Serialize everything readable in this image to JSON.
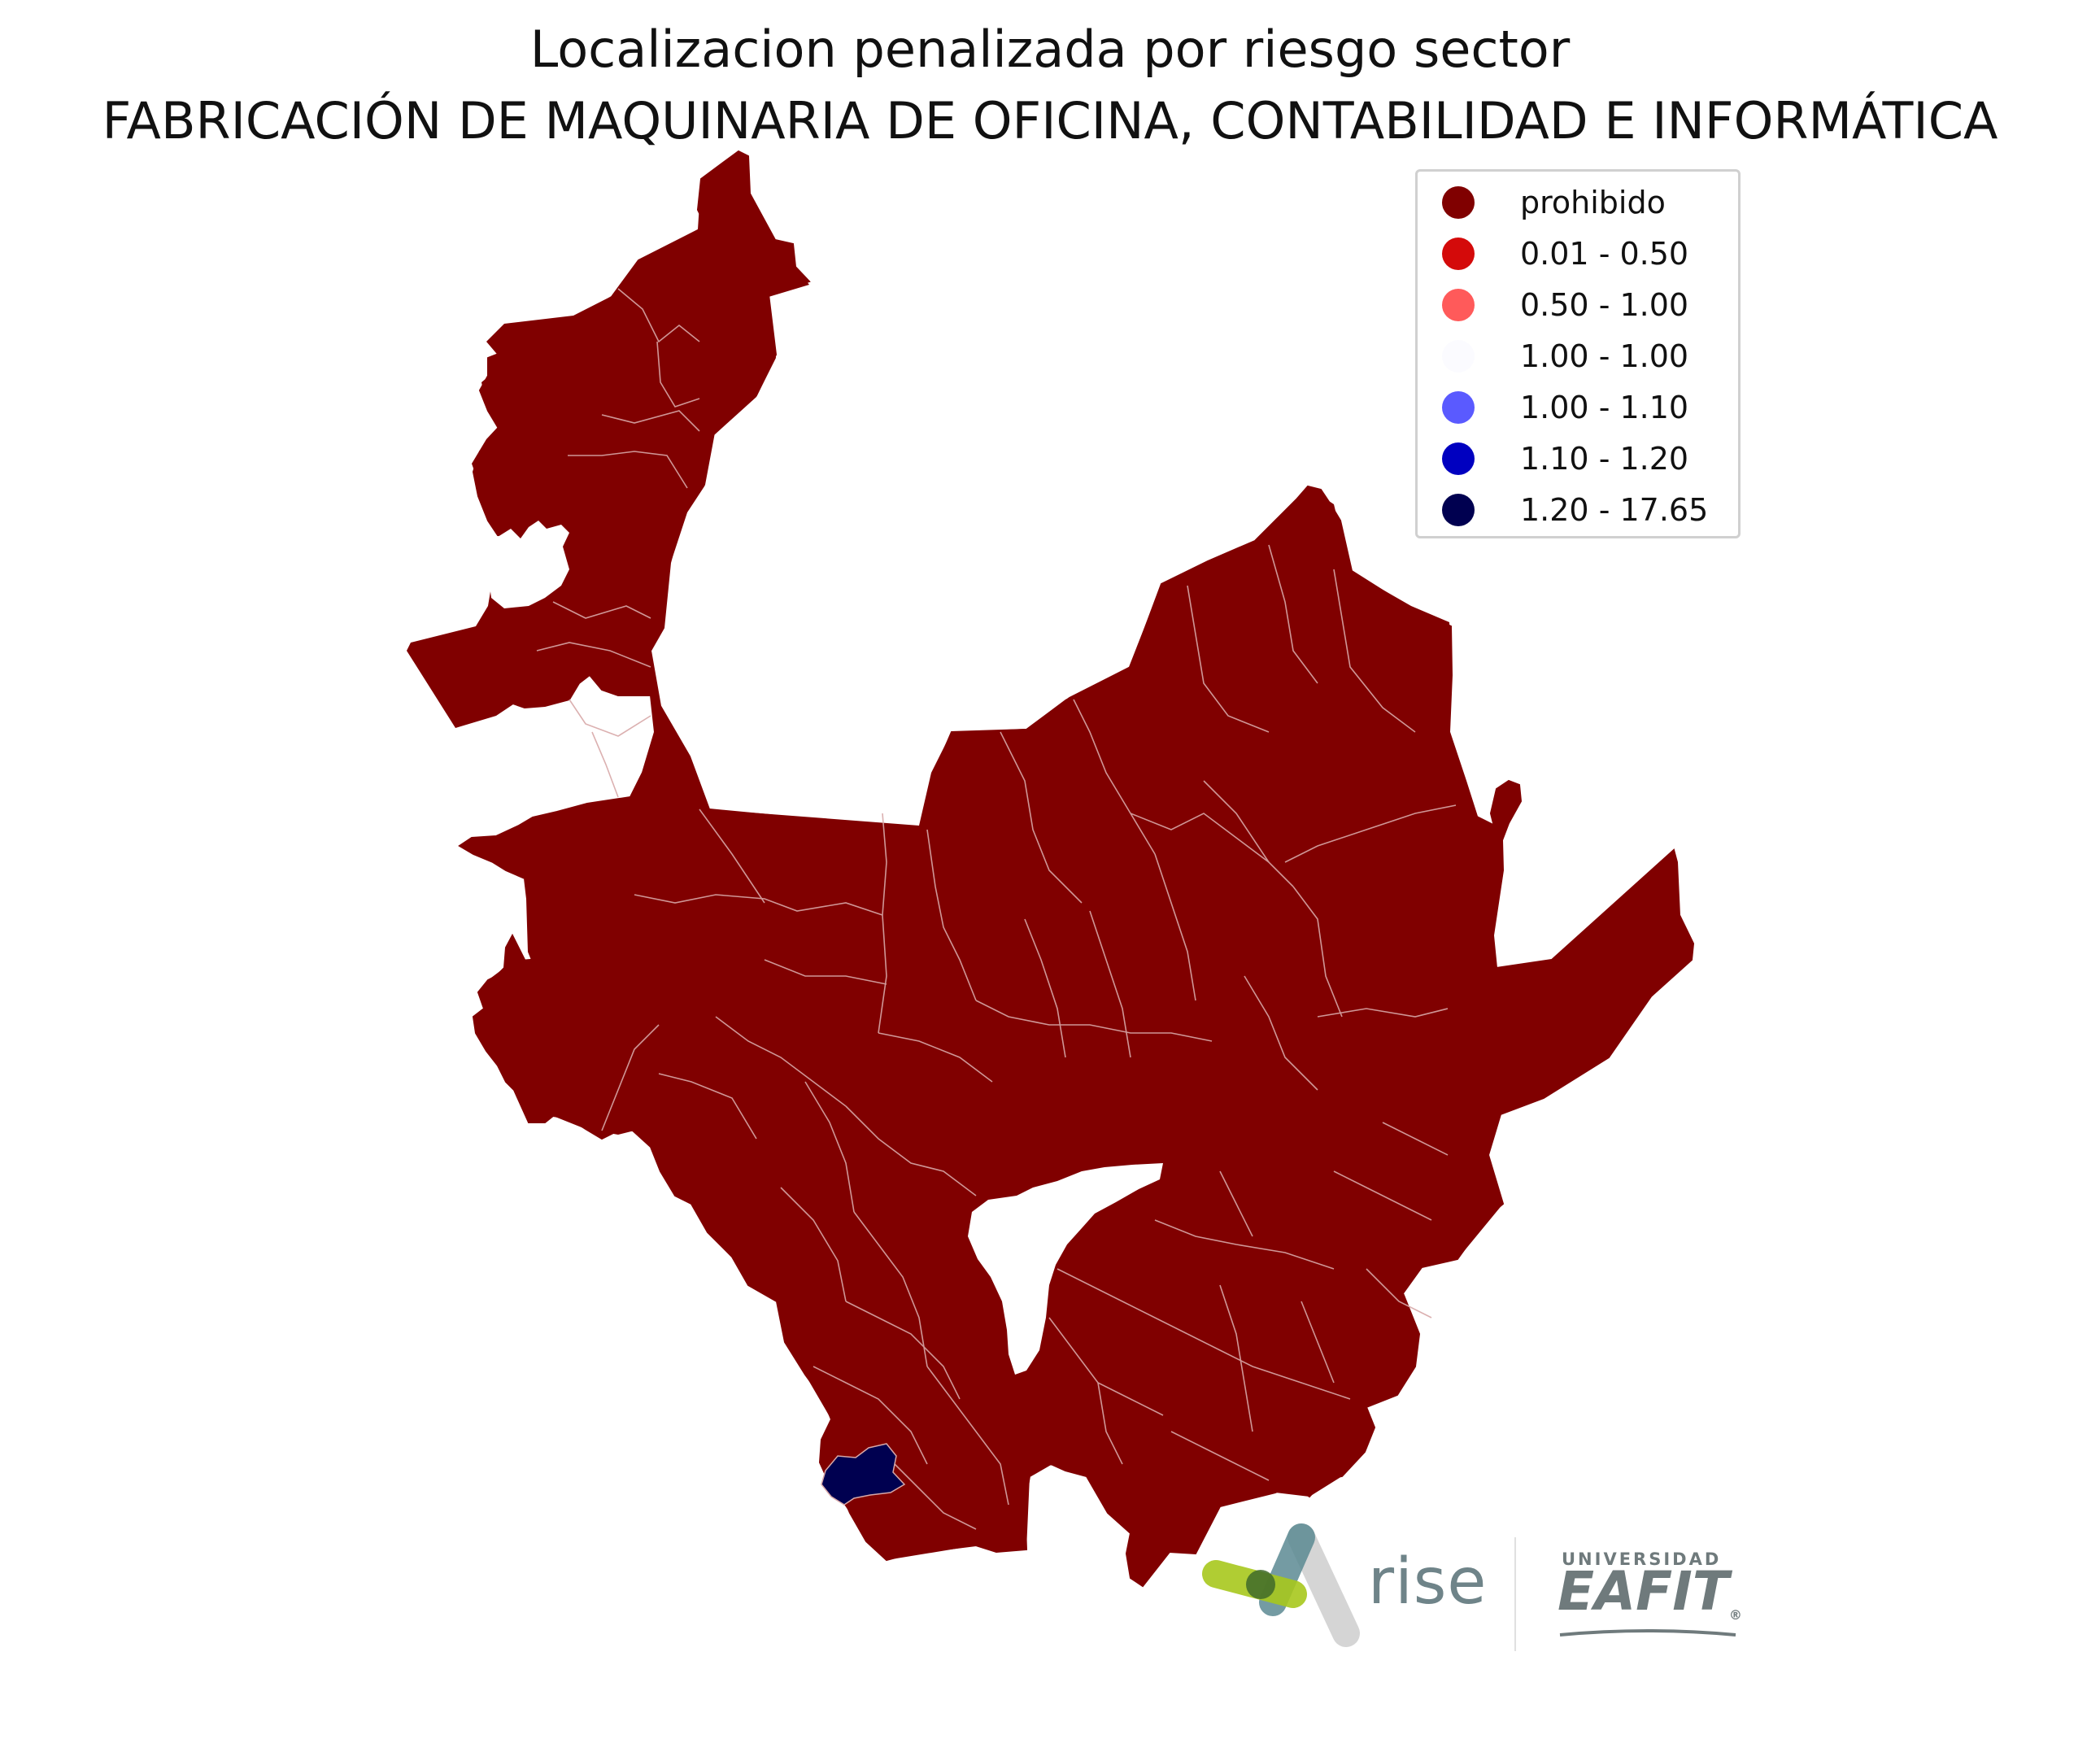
{
  "title_line1": "Localizacion penalizada por riesgo sector",
  "title_line2": "FABRICACIÓN DE MAQUINARIA DE OFICINA, CONTABILIDAD E INFORMÁTICA",
  "legend": [
    {
      "label": "prohibido",
      "color": "#800000"
    },
    {
      "label": "0.01 - 0.50",
      "color": "#d40a0a"
    },
    {
      "label": "0.50 - 1.00",
      "color": "#ff5a5a"
    },
    {
      "label": "1.00 - 1.00",
      "color": "#fbfbff"
    },
    {
      "label": "1.00 - 1.10",
      "color": "#5a5aff"
    },
    {
      "label": "1.10 - 1.20",
      "color": "#0000c0"
    },
    {
      "label": "1.20 - 17.65",
      "color": "#000050"
    }
  ],
  "map": {
    "fill_main": "#800000",
    "border_color": "#d8a8a8",
    "highlight_fill": "#000050",
    "highlight_class": "1.20 - 17.65"
  },
  "logos": {
    "rise_text": "rise",
    "university_small": "UNIVERSIDAD",
    "university_big": "EAFIT",
    "registered": "®"
  }
}
